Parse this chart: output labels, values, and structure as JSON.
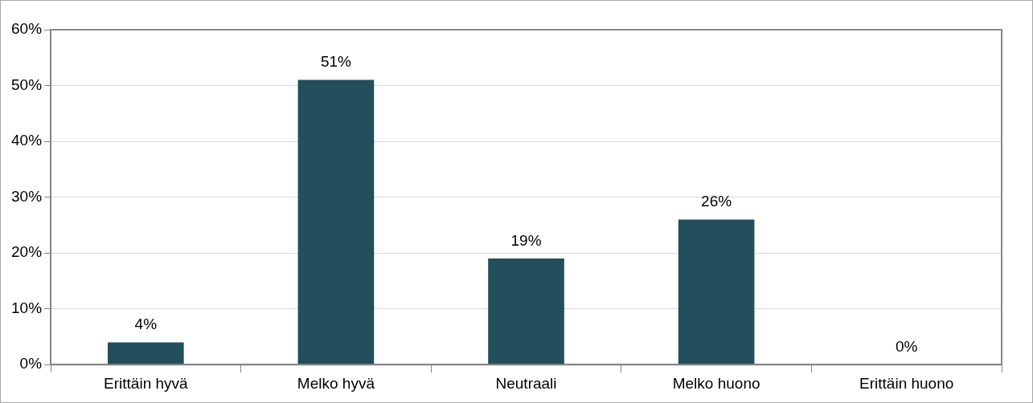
{
  "chart_data": {
    "type": "bar",
    "categories": [
      "Erittäin hyvä",
      "Melko hyvä",
      "Neutraali",
      "Melko huono",
      "Erittäin huono"
    ],
    "values": [
      4,
      51,
      19,
      26,
      0
    ],
    "color": "#234e5c",
    "value_labels": [
      "4%",
      "51%",
      "19%",
      "26%",
      "0%"
    ],
    "ylim": [
      0,
      60
    ],
    "yticks": [
      {
        "value": 0,
        "label": "0%"
      },
      {
        "value": 10,
        "label": "10%"
      },
      {
        "value": 20,
        "label": "20%"
      },
      {
        "value": 30,
        "label": "30%"
      },
      {
        "value": 40,
        "label": "40%"
      },
      {
        "value": 50,
        "label": "50%"
      },
      {
        "value": 60,
        "label": "60%"
      }
    ],
    "grid": "y",
    "legend": false
  }
}
